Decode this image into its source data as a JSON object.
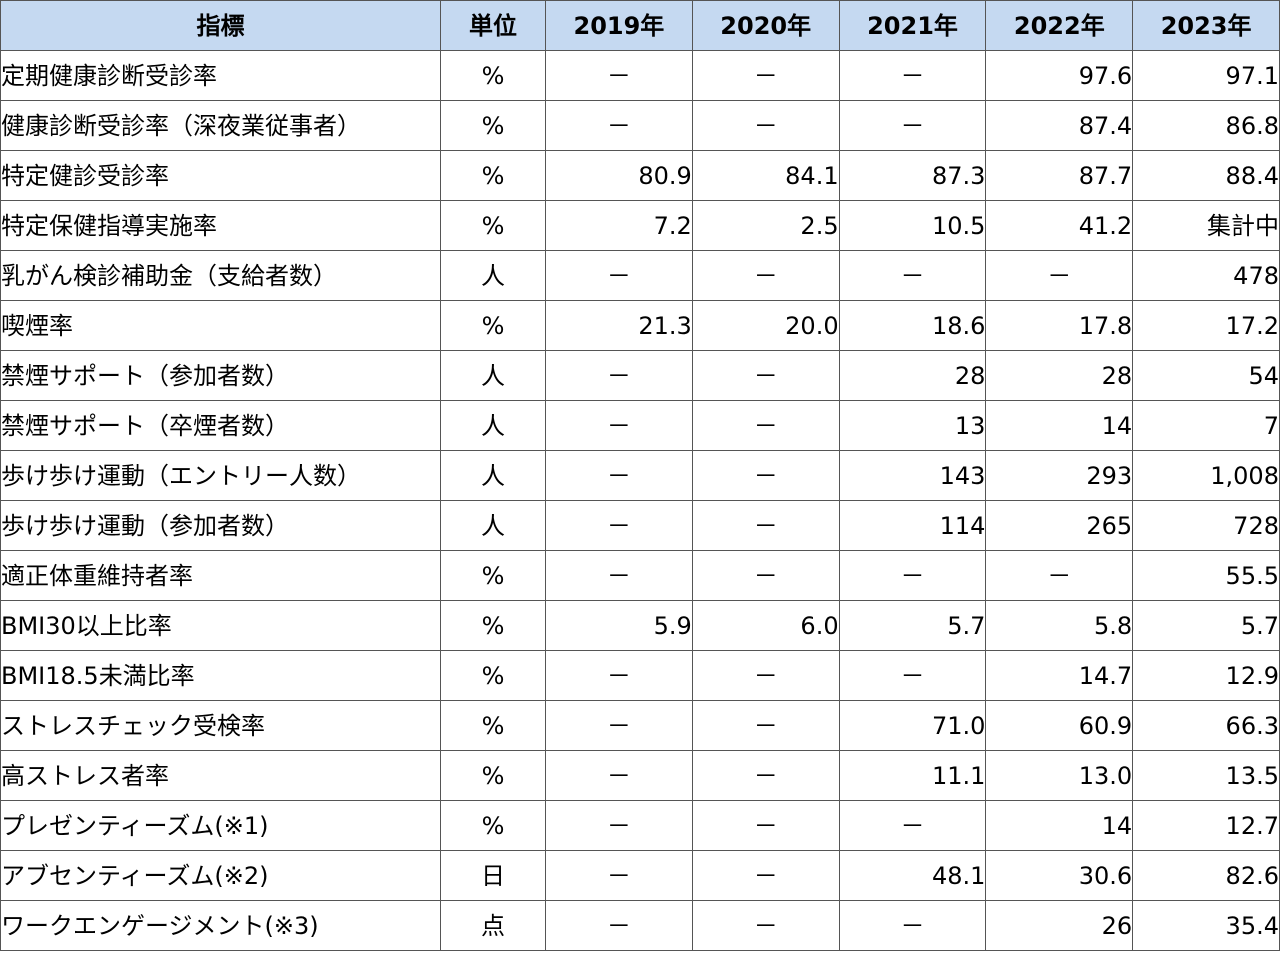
{
  "header": {
    "indicator": "指標",
    "unit": "単位",
    "years": [
      "2019年",
      "2020年",
      "2021年",
      "2022年",
      "2023年"
    ]
  },
  "rows": [
    {
      "indicator": "定期健康診断受診率",
      "unit": "%",
      "values": [
        "－",
        "－",
        "－",
        "97.6",
        "97.1"
      ]
    },
    {
      "indicator": "健康診断受診率（深夜業従事者）",
      "unit": "%",
      "values": [
        "－",
        "－",
        "－",
        "87.4",
        "86.8"
      ]
    },
    {
      "indicator": "特定健診受診率",
      "unit": "%",
      "values": [
        "80.9",
        "84.1",
        "87.3",
        "87.7",
        "88.4"
      ]
    },
    {
      "indicator": "特定保健指導実施率",
      "unit": "%",
      "values": [
        "7.2",
        "2.5",
        "10.5",
        "41.2",
        "集計中"
      ]
    },
    {
      "indicator": "乳がん検診補助金（支給者数）",
      "unit": "人",
      "values": [
        "－",
        "－",
        "－",
        "－",
        "478"
      ]
    },
    {
      "indicator": "喫煙率",
      "unit": "%",
      "values": [
        "21.3",
        "20.0",
        "18.6",
        "17.8",
        "17.2"
      ]
    },
    {
      "indicator": "禁煙サポート（参加者数）",
      "unit": "人",
      "values": [
        "－",
        "－",
        "28",
        "28",
        "54"
      ]
    },
    {
      "indicator": "禁煙サポート（卒煙者数）",
      "unit": "人",
      "values": [
        "－",
        "－",
        "13",
        "14",
        "7"
      ]
    },
    {
      "indicator": "歩け歩け運動（エントリー人数）",
      "unit": "人",
      "values": [
        "－",
        "－",
        "143",
        "293",
        "1,008"
      ]
    },
    {
      "indicator": "歩け歩け運動（参加者数）",
      "unit": "人",
      "values": [
        "－",
        "－",
        "114",
        "265",
        "728"
      ]
    },
    {
      "indicator": "適正体重維持者率",
      "unit": "%",
      "values": [
        "－",
        "－",
        "－",
        "－",
        "55.5"
      ]
    },
    {
      "indicator": "BMI30以上比率",
      "unit": "%",
      "values": [
        "5.9",
        "6.0",
        "5.7",
        "5.8",
        "5.7"
      ]
    },
    {
      "indicator": "BMI18.5未満比率",
      "unit": "%",
      "values": [
        "－",
        "－",
        "－",
        "14.7",
        "12.9"
      ]
    },
    {
      "indicator": "ストレスチェック受検率",
      "unit": "%",
      "values": [
        "－",
        "－",
        "71.0",
        "60.9",
        "66.3"
      ]
    },
    {
      "indicator": "高ストレス者率",
      "unit": "%",
      "values": [
        "－",
        "－",
        "11.1",
        "13.0",
        "13.5"
      ]
    },
    {
      "indicator": "プレゼンティーズム(※1)",
      "unit": "%",
      "values": [
        "－",
        "－",
        "－",
        "14",
        "12.7"
      ]
    },
    {
      "indicator": "アブセンティーズム(※2)",
      "unit": "日",
      "values": [
        "－",
        "－",
        "48.1",
        "30.6",
        "82.6"
      ]
    },
    {
      "indicator": "ワークエンゲージメント(※3)",
      "unit": "点",
      "values": [
        "－",
        "－",
        "－",
        "26",
        "35.4"
      ]
    }
  ],
  "colors": {
    "header_bg": "#c5d9f1",
    "border": "#555555"
  }
}
